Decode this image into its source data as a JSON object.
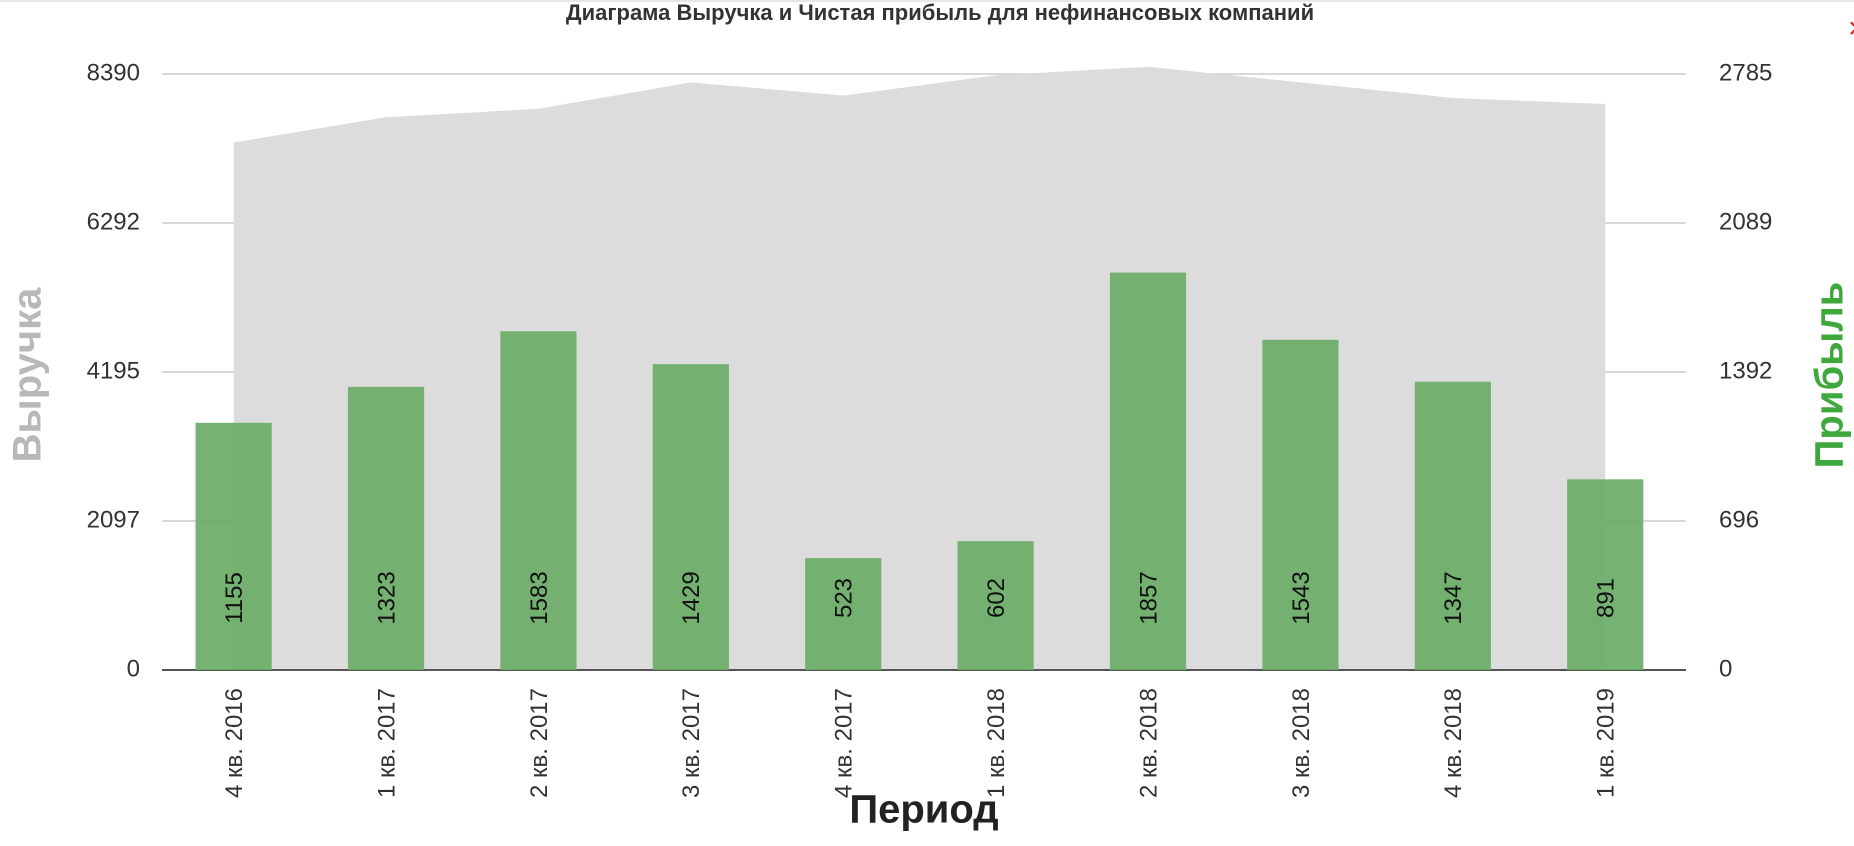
{
  "chart_data": {
    "type": "bar_area",
    "title": "Диаграма Выручка и Чистая прибыль для нефинансовых компаний",
    "close": "×",
    "x_label": "Период",
    "y_label": "Выручка",
    "y2_label": "Прибыль",
    "categories": [
      "4 кв. 2016",
      "1 кв. 2017",
      "2 кв. 2017",
      "3 кв. 2017",
      "4 кв. 2017",
      "1 кв. 2018",
      "2 кв. 2018",
      "3 кв. 2018",
      "4 кв. 2018",
      "1 кв. 2019"
    ],
    "series": [
      {
        "name": "Выручка",
        "type": "area",
        "color": "#dcdcdc",
        "values": [
          7426,
          7781,
          7900,
          8272,
          8086,
          8373,
          8492,
          8272,
          8052,
          7967
        ]
      },
      {
        "name": "Прибыль",
        "type": "bar",
        "axis": "y2",
        "color": "#6aad67",
        "values": [
          1155,
          1323,
          1583,
          1429,
          523,
          602,
          1857,
          1543,
          1347,
          891
        ]
      }
    ],
    "ylim": [
      0,
      8390
    ],
    "yticks": [
      0,
      2097,
      4195,
      6292,
      8390
    ],
    "y2lim": [
      0,
      2785
    ],
    "y2ticks": [
      0,
      696,
      1392,
      2089,
      2785
    ],
    "grid": true
  }
}
